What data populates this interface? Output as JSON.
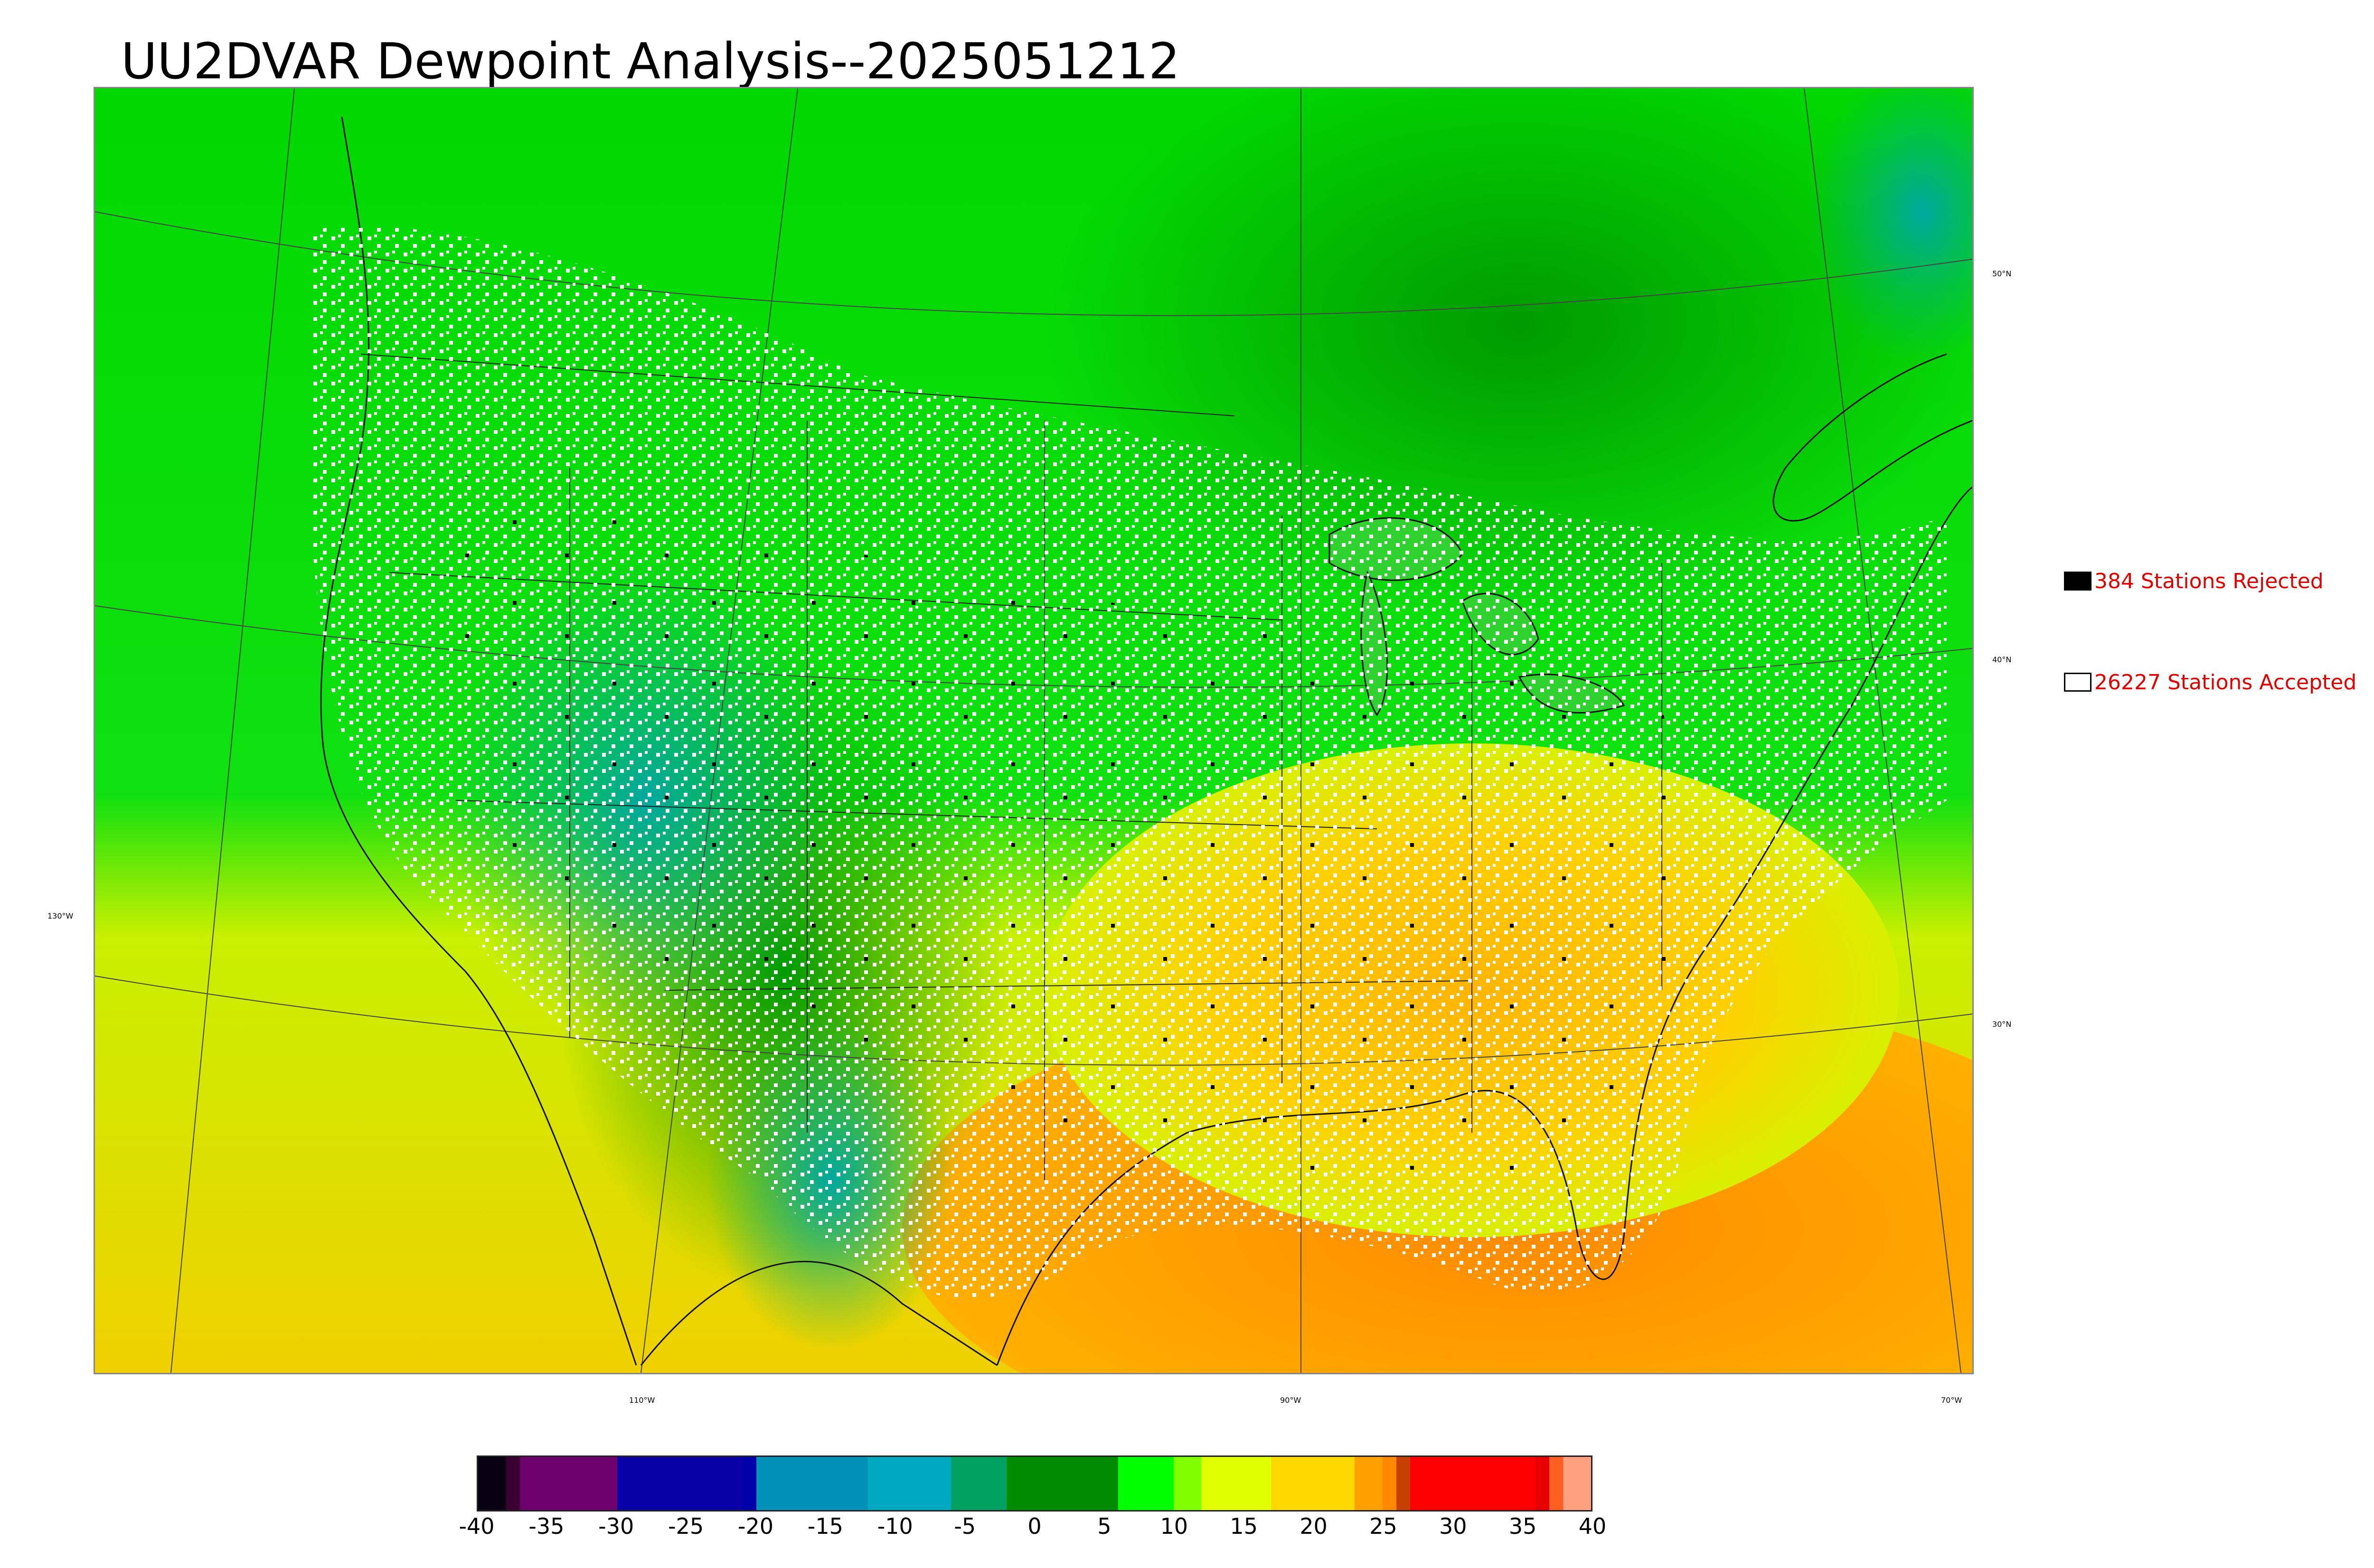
{
  "title": "UU2DVAR Dewpoint Analysis--2025051212",
  "legend": {
    "rejected": {
      "label": "384 Stations Rejected",
      "swatch_color": "#000000"
    },
    "accepted": {
      "label": "26227 Stations Accepted",
      "swatch_color": "#ffffff"
    }
  },
  "latitude_labels": [
    "50°N",
    "40°N",
    "30°N"
  ],
  "longitude_labels": [
    "130°W",
    "110°W",
    "90°W",
    "70°W"
  ],
  "colorbar": {
    "ticks": [
      "-40",
      "-35",
      "-30",
      "-25",
      "-20",
      "-15",
      "-10",
      "-5",
      "0",
      "5",
      "10",
      "15",
      "20",
      "25",
      "30",
      "35",
      "40"
    ],
    "stops": [
      {
        "value": -40,
        "color": "#0a0014"
      },
      {
        "value": -38,
        "color": "#3a0030"
      },
      {
        "value": -37,
        "color": "#6e006e"
      },
      {
        "value": -30,
        "color": "#0a00a8"
      },
      {
        "value": -21,
        "color": "#0000aa"
      },
      {
        "value": -20,
        "color": "#0090b8"
      },
      {
        "value": -12,
        "color": "#00a8c0"
      },
      {
        "value": -6,
        "color": "#00a060"
      },
      {
        "value": -2,
        "color": "#008c00"
      },
      {
        "value": 6,
        "color": "#00ff00"
      },
      {
        "value": 10,
        "color": "#80ff00"
      },
      {
        "value": 12,
        "color": "#e0ff00"
      },
      {
        "value": 17,
        "color": "#ffd800"
      },
      {
        "value": 23,
        "color": "#ffa000"
      },
      {
        "value": 25,
        "color": "#ff8800"
      },
      {
        "value": 26,
        "color": "#c84000"
      },
      {
        "value": 27,
        "color": "#ff0000"
      },
      {
        "value": 36,
        "color": "#e80000"
      },
      {
        "value": 37,
        "color": "#ff6020"
      },
      {
        "value": 38,
        "color": "#ffa080"
      },
      {
        "value": 40,
        "color": "#d0d0d0"
      }
    ]
  }
}
